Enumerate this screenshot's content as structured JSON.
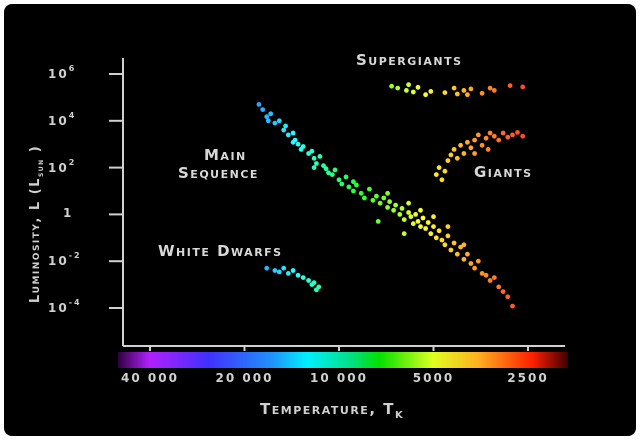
{
  "chart_data": {
    "type": "scatter",
    "title": "",
    "xlabel": "Temperature, T",
    "xlabel_subscript": "K",
    "ylabel": "Luminosity, L (L",
    "ylabel_subscript": "sun",
    "ylabel_suffix": " )",
    "x_scale": "log",
    "x_reversed": true,
    "y_scale": "log",
    "xlim": [
      48000,
      2200
    ],
    "ylim": [
      4e-05,
      3000000
    ],
    "grid": false,
    "background": "#000000",
    "colorbar": "temperature spectrum: violet (hot) to red (cool)",
    "x_ticks": [
      {
        "value": 40000,
        "label": "40 000"
      },
      {
        "value": 20000,
        "label": "20 000"
      },
      {
        "value": 10000,
        "label": "10 000"
      },
      {
        "value": 5000,
        "label": "5000"
      },
      {
        "value": 2500,
        "label": "2500"
      }
    ],
    "y_ticks": [
      {
        "value": 1000000,
        "base": "10",
        "exp": "6"
      },
      {
        "value": 10000,
        "base": "10",
        "exp": "4"
      },
      {
        "value": 100,
        "base": "10",
        "exp": "2"
      },
      {
        "value": 1,
        "base": "1",
        "exp": ""
      },
      {
        "value": 0.01,
        "base": "10",
        "exp": "-2"
      },
      {
        "value": 0.0001,
        "base": "10",
        "exp": "-4"
      }
    ],
    "annotations": {
      "supergiants": "Supergiants",
      "giants": "Giants",
      "main": "Main",
      "sequence": "Sequence",
      "white_dwarfs": "White Dwarfs"
    },
    "series": [
      {
        "group": "main-sequence",
        "points": [
          [
            18000,
            50000
          ],
          [
            17500,
            30000
          ],
          [
            17000,
            15000
          ],
          [
            16500,
            20000
          ],
          [
            16800,
            10000
          ],
          [
            16000,
            8000
          ],
          [
            15500,
            10000
          ],
          [
            15000,
            4000
          ],
          [
            14800,
            6000
          ],
          [
            14500,
            2500
          ],
          [
            14000,
            3000
          ],
          [
            14000,
            1200
          ],
          [
            13800,
            1500
          ],
          [
            13500,
            1000
          ],
          [
            13200,
            600
          ],
          [
            13000,
            800
          ],
          [
            12500,
            400
          ],
          [
            12200,
            500
          ],
          [
            12000,
            250
          ],
          [
            12000,
            100
          ],
          [
            11800,
            150
          ],
          [
            11500,
            300
          ],
          [
            11200,
            120
          ],
          [
            11000,
            90
          ],
          [
            10800,
            60
          ],
          [
            10500,
            50
          ],
          [
            10300,
            80
          ],
          [
            10000,
            30
          ],
          [
            9800,
            20
          ],
          [
            9500,
            40
          ],
          [
            9300,
            15
          ],
          [
            9000,
            10
          ],
          [
            9000,
            25
          ],
          [
            8800,
            18
          ],
          [
            8500,
            8
          ],
          [
            8300,
            5
          ],
          [
            8000,
            12
          ],
          [
            7800,
            4
          ],
          [
            7600,
            6
          ],
          [
            7500,
            0.5
          ],
          [
            7400,
            3
          ],
          [
            7200,
            5
          ],
          [
            7000,
            2
          ],
          [
            7000,
            8
          ],
          [
            6900,
            3.5
          ],
          [
            6700,
            1.5
          ],
          [
            6600,
            2.5
          ],
          [
            6400,
            1
          ],
          [
            6300,
            1.8
          ],
          [
            6200,
            0.6
          ],
          [
            6200,
            0.15
          ],
          [
            6000,
            1.2
          ],
          [
            6000,
            3
          ],
          [
            5900,
            0.8
          ],
          [
            5800,
            0.4
          ],
          [
            5700,
            1
          ],
          [
            5600,
            0.5
          ],
          [
            5500,
            0.3
          ],
          [
            5500,
            1.5
          ],
          [
            5400,
            0.7
          ],
          [
            5300,
            0.25
          ],
          [
            5200,
            0.45
          ],
          [
            5100,
            0.15
          ],
          [
            5000,
            0.3
          ],
          [
            5000,
            0.8
          ],
          [
            4900,
            0.1
          ],
          [
            4800,
            0.2
          ],
          [
            4700,
            0.08
          ],
          [
            4600,
            0.05
          ],
          [
            4500,
            0.12
          ],
          [
            4500,
            0.3
          ],
          [
            4400,
            0.03
          ],
          [
            4300,
            0.06
          ],
          [
            4200,
            0.02
          ],
          [
            4100,
            0.04
          ],
          [
            4000,
            0.012
          ],
          [
            4000,
            0.05
          ],
          [
            3900,
            0.02
          ],
          [
            3800,
            0.008
          ],
          [
            3700,
            0.005
          ],
          [
            3600,
            0.01
          ],
          [
            3500,
            0.003
          ],
          [
            3400,
            0.0025
          ],
          [
            3300,
            0.0015
          ],
          [
            3200,
            0.002
          ],
          [
            3100,
            0.0008
          ],
          [
            3000,
            0.0005
          ],
          [
            2900,
            0.0003
          ],
          [
            2800,
            0.00012
          ]
        ]
      },
      {
        "group": "supergiants",
        "points": [
          [
            6800,
            300000
          ],
          [
            6500,
            250000
          ],
          [
            6100,
            200000
          ],
          [
            6000,
            350000
          ],
          [
            5800,
            170000
          ],
          [
            5600,
            270000
          ],
          [
            5300,
            130000
          ],
          [
            5100,
            180000
          ],
          [
            4600,
            160000
          ],
          [
            4300,
            250000
          ],
          [
            4200,
            140000
          ],
          [
            4000,
            200000
          ],
          [
            3900,
            130000
          ],
          [
            3800,
            230000
          ],
          [
            3500,
            150000
          ],
          [
            3300,
            250000
          ],
          [
            3200,
            200000
          ],
          [
            2850,
            320000
          ],
          [
            2600,
            280000
          ]
        ]
      },
      {
        "group": "giants",
        "points": [
          [
            4900,
            50
          ],
          [
            4800,
            100
          ],
          [
            4700,
            30
          ],
          [
            4600,
            70
          ],
          [
            4500,
            200
          ],
          [
            4400,
            350
          ],
          [
            4300,
            600
          ],
          [
            4200,
            250
          ],
          [
            4100,
            900
          ],
          [
            4000,
            400
          ],
          [
            3900,
            1200
          ],
          [
            3800,
            700
          ],
          [
            3700,
            1500
          ],
          [
            3700,
            400
          ],
          [
            3600,
            2500
          ],
          [
            3500,
            900
          ],
          [
            3400,
            1800
          ],
          [
            3350,
            600
          ],
          [
            3300,
            3000
          ],
          [
            3200,
            2200
          ],
          [
            3100,
            1500
          ],
          [
            3000,
            3000
          ],
          [
            2900,
            2000
          ],
          [
            2800,
            2500
          ],
          [
            2700,
            3200
          ],
          [
            2600,
            2200
          ]
        ]
      },
      {
        "group": "white-dwarfs",
        "points": [
          [
            17000,
            0.005
          ],
          [
            16000,
            0.004
          ],
          [
            15500,
            0.0035
          ],
          [
            15000,
            0.005
          ],
          [
            14500,
            0.003
          ],
          [
            14000,
            0.004
          ],
          [
            13500,
            0.0025
          ],
          [
            13000,
            0.002
          ],
          [
            12500,
            0.0015
          ],
          [
            12200,
            0.001
          ],
          [
            12000,
            0.0012
          ],
          [
            11800,
            0.0006
          ],
          [
            11600,
            0.0008
          ]
        ]
      }
    ]
  }
}
